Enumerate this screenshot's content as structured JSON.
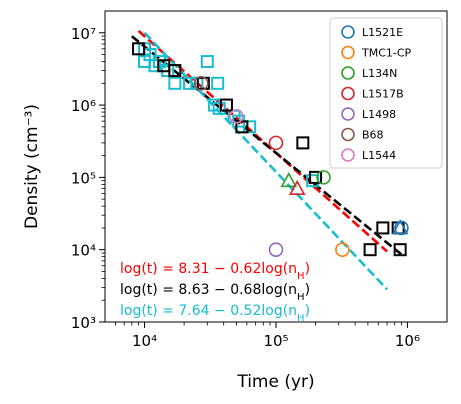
{
  "chart_data": {
    "type": "scatter",
    "xlabel": "Time (yr)",
    "ylabel": "Density (cm⁻³)",
    "xscale": "log",
    "yscale": "log",
    "xlim": [
      5000,
      2000000
    ],
    "ylim": [
      1000,
      20000000
    ],
    "x_ticks": [
      10000,
      100000,
      1000000
    ],
    "x_tick_labels": [
      "10⁴",
      "10⁵",
      "10⁶"
    ],
    "y_ticks": [
      1000,
      10000,
      100000,
      1000000,
      10000000
    ],
    "y_tick_labels": [
      "10³",
      "10⁴",
      "10⁵",
      "10⁶",
      "10⁷"
    ],
    "grid": false,
    "legend_position": "top-right",
    "legend": [
      {
        "label": "L1521E",
        "color": "#1f77b4"
      },
      {
        "label": "TMC1-CP",
        "color": "#ff7f0e"
      },
      {
        "label": "L134N",
        "color": "#2ca02c"
      },
      {
        "label": "L1517B",
        "color": "#d62728"
      },
      {
        "label": "L1498",
        "color": "#9467bd"
      },
      {
        "label": "B68",
        "color": "#8c564b"
      },
      {
        "label": "L1544",
        "color": "#e377c2"
      }
    ],
    "fits": [
      {
        "label_parts": [
          "log(t) = 8.31 − 0.62log(n",
          "H",
          ")"
        ],
        "color": "#ff0000",
        "intercept": 8.31,
        "slope": -0.62
      },
      {
        "label_parts": [
          "log(t) = 8.63 − 0.68log(n",
          "H",
          ")"
        ],
        "color": "#000000",
        "intercept": 8.63,
        "slope": -0.68
      },
      {
        "label_parts": [
          "log(t) = 7.64 − 0.52log(n",
          "H",
          ")"
        ],
        "color": "#17becf",
        "intercept": 7.64,
        "slope": -0.52
      }
    ],
    "black_squares": [
      [
        9000,
        6000000
      ],
      [
        14000,
        3500000
      ],
      [
        17000,
        3000000
      ],
      [
        28000,
        2000000
      ],
      [
        42000,
        1000000
      ],
      [
        55000,
        500000
      ],
      [
        160000,
        300000
      ],
      [
        200000,
        100000
      ],
      [
        520000,
        10000
      ],
      [
        650000,
        20000
      ],
      [
        850000,
        20000
      ],
      [
        880000,
        10000
      ]
    ],
    "cyan_squares": [
      [
        10000,
        6000000
      ],
      [
        10000,
        4000000
      ],
      [
        11000,
        5000000
      ],
      [
        12000,
        3500000
      ],
      [
        13000,
        4000000
      ],
      [
        15000,
        3000000
      ],
      [
        17000,
        2000000
      ],
      [
        22000,
        2000000
      ],
      [
        25000,
        2000000
      ],
      [
        30000,
        4000000
      ],
      [
        34000,
        1000000
      ],
      [
        36000,
        2000000
      ],
      [
        37000,
        900000
      ],
      [
        48000,
        700000
      ],
      [
        52000,
        600000
      ],
      [
        63000,
        500000
      ],
      [
        190000,
        90000
      ]
    ],
    "circles": [
      {
        "series": "L1521E",
        "x": 900000,
        "y": 20000,
        "color": "#1f77b4"
      },
      {
        "series": "TMC1-CP",
        "x": 320000,
        "y": 10000,
        "color": "#ff7f0e"
      },
      {
        "series": "L134N",
        "x": 230000,
        "y": 100000,
        "color": "#2ca02c"
      },
      {
        "series": "L1517B",
        "x": 100000,
        "y": 300000,
        "color": "#d62728"
      },
      {
        "series": "L1498",
        "x": 100000,
        "y": 10000,
        "color": "#9467bd"
      },
      {
        "series": "B68",
        "x": 27000,
        "y": 2000000,
        "color": "#8c564b"
      },
      {
        "series": "L1544",
        "x": 50000,
        "y": 700000,
        "color": "#e377c2"
      }
    ],
    "triangles": [
      {
        "x": 125000,
        "y": 90000,
        "color": "#2ca02c"
      },
      {
        "x": 145000,
        "y": 70000,
        "color": "#d62728"
      },
      {
        "x": 880000,
        "y": 20000,
        "color": "#1f77b4"
      }
    ]
  }
}
